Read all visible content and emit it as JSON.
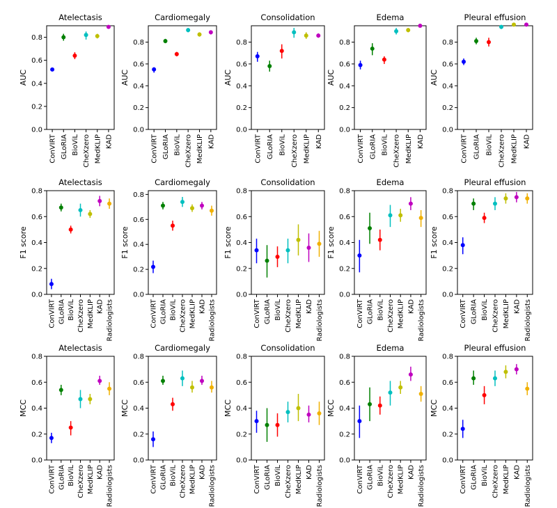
{
  "chart_data": [
    {
      "type": "scatter",
      "title": "Atelectasis",
      "ylabel": "AUC",
      "ylim": [
        0,
        0.9
      ],
      "yticks": [
        0.0,
        0.2,
        0.4,
        0.6,
        0.8
      ],
      "categories": [
        "ConVIRT",
        "GLoRIA",
        "BioViL",
        "CheXzero",
        "MedKLIP",
        "KAD"
      ],
      "values": [
        0.52,
        0.8,
        0.64,
        0.82,
        0.81,
        0.89
      ],
      "lower": [
        0.51,
        0.77,
        0.61,
        0.78,
        0.79,
        0.88
      ],
      "upper": [
        0.53,
        0.83,
        0.67,
        0.85,
        0.83,
        0.9
      ]
    },
    {
      "type": "scatter",
      "title": "Cardiomegaly",
      "ylabel": "AUC",
      "ylim": [
        0,
        0.95
      ],
      "yticks": [
        0.0,
        0.2,
        0.4,
        0.6,
        0.8
      ],
      "categories": [
        "ConVIRT",
        "GLoRIA",
        "BioViL",
        "CheXzero",
        "MedKLIP",
        "KAD"
      ],
      "values": [
        0.55,
        0.81,
        0.69,
        0.91,
        0.87,
        0.89
      ],
      "lower": [
        0.52,
        0.79,
        0.67,
        0.89,
        0.85,
        0.87
      ],
      "upper": [
        0.57,
        0.83,
        0.71,
        0.93,
        0.89,
        0.9
      ]
    },
    {
      "type": "scatter",
      "title": "Consolidation",
      "ylabel": "AUC",
      "ylim": [
        0,
        0.95
      ],
      "yticks": [
        0.0,
        0.2,
        0.4,
        0.6,
        0.8
      ],
      "categories": [
        "ConVIRT",
        "GLoRIA",
        "BioViL",
        "CheXzero",
        "MedKLIP",
        "KAD"
      ],
      "values": [
        0.67,
        0.58,
        0.72,
        0.89,
        0.86,
        0.86
      ],
      "lower": [
        0.62,
        0.53,
        0.65,
        0.84,
        0.83,
        0.84
      ],
      "upper": [
        0.71,
        0.63,
        0.78,
        0.93,
        0.89,
        0.88
      ]
    },
    {
      "type": "scatter",
      "title": "Edema",
      "ylabel": "AUC",
      "ylim": [
        0,
        0.95
      ],
      "yticks": [
        0.0,
        0.2,
        0.4,
        0.6,
        0.8
      ],
      "categories": [
        "ConVIRT",
        "GLoRIA",
        "BioViL",
        "CheXzero",
        "MedKLIP",
        "KAD"
      ],
      "values": [
        0.59,
        0.74,
        0.64,
        0.9,
        0.91,
        0.95
      ],
      "lower": [
        0.55,
        0.68,
        0.6,
        0.87,
        0.89,
        0.94
      ],
      "upper": [
        0.63,
        0.79,
        0.67,
        0.93,
        0.93,
        0.96
      ]
    },
    {
      "type": "scatter",
      "title": "Pleural effusion",
      "ylabel": "AUC",
      "ylim": [
        0,
        0.95
      ],
      "yticks": [
        0.0,
        0.2,
        0.4,
        0.6,
        0.8
      ],
      "categories": [
        "ConVIRT",
        "GLoRIA",
        "BioViL",
        "CheXzero",
        "MedKLIP",
        "KAD"
      ],
      "values": [
        0.62,
        0.81,
        0.8,
        0.94,
        0.96,
        0.96
      ],
      "lower": [
        0.59,
        0.78,
        0.76,
        0.92,
        0.95,
        0.95
      ],
      "upper": [
        0.65,
        0.84,
        0.84,
        0.95,
        0.97,
        0.97
      ]
    },
    {
      "type": "scatter",
      "title": "Atelectasis",
      "ylabel": "F1 score",
      "ylim": [
        0,
        0.8
      ],
      "yticks": [
        0.0,
        0.2,
        0.4,
        0.6,
        0.8
      ],
      "categories": [
        "ConVIRT",
        "GLoRIA",
        "BioViL",
        "CheXzero",
        "MedKLIP",
        "KAD",
        "Radiologists"
      ],
      "values": [
        0.08,
        0.67,
        0.5,
        0.65,
        0.62,
        0.72,
        0.7
      ],
      "lower": [
        0.04,
        0.64,
        0.47,
        0.6,
        0.59,
        0.68,
        0.66
      ],
      "upper": [
        0.12,
        0.7,
        0.53,
        0.7,
        0.65,
        0.76,
        0.74
      ]
    },
    {
      "type": "scatter",
      "title": "Cardiomegaly",
      "ylabel": "F1 score",
      "ylim": [
        0,
        0.83
      ],
      "yticks": [
        0.0,
        0.2,
        0.4,
        0.6,
        0.8
      ],
      "categories": [
        "ConVIRT",
        "GLoRIA",
        "BioViL",
        "CheXzero",
        "MedKLIP",
        "KAD",
        "Radiologists"
      ],
      "values": [
        0.22,
        0.71,
        0.55,
        0.74,
        0.69,
        0.71,
        0.67
      ],
      "lower": [
        0.17,
        0.68,
        0.51,
        0.7,
        0.66,
        0.68,
        0.63
      ],
      "upper": [
        0.27,
        0.74,
        0.59,
        0.78,
        0.72,
        0.74,
        0.71
      ]
    },
    {
      "type": "scatter",
      "title": "Consolidation",
      "ylabel": "F1 score",
      "ylim": [
        0,
        0.8
      ],
      "yticks": [
        0.0,
        0.2,
        0.4,
        0.6,
        0.8
      ],
      "categories": [
        "ConVIRT",
        "GLoRIA",
        "BioViL",
        "CheXzero",
        "MedKLIP",
        "KAD",
        "Radiologists"
      ],
      "values": [
        0.34,
        0.26,
        0.29,
        0.34,
        0.42,
        0.36,
        0.39
      ],
      "lower": [
        0.24,
        0.13,
        0.21,
        0.24,
        0.3,
        0.25,
        0.29
      ],
      "upper": [
        0.43,
        0.38,
        0.37,
        0.43,
        0.54,
        0.47,
        0.49
      ]
    },
    {
      "type": "scatter",
      "title": "Edema",
      "ylabel": "F1 score",
      "ylim": [
        0,
        0.8
      ],
      "yticks": [
        0.0,
        0.2,
        0.4,
        0.6,
        0.8
      ],
      "categories": [
        "ConVIRT",
        "GLoRIA",
        "BioViL",
        "CheXzero",
        "MedKLIP",
        "KAD",
        "Radiologists"
      ],
      "values": [
        0.3,
        0.51,
        0.42,
        0.61,
        0.61,
        0.7,
        0.59
      ],
      "lower": [
        0.17,
        0.39,
        0.34,
        0.52,
        0.56,
        0.65,
        0.52
      ],
      "upper": [
        0.42,
        0.63,
        0.5,
        0.69,
        0.66,
        0.75,
        0.65
      ]
    },
    {
      "type": "scatter",
      "title": "Pleural effusion",
      "ylabel": "F1 score",
      "ylim": [
        0,
        0.8
      ],
      "yticks": [
        0.0,
        0.2,
        0.4,
        0.6,
        0.8
      ],
      "categories": [
        "ConVIRT",
        "GLoRIA",
        "BioViL",
        "CheXzero",
        "MedKLIP",
        "KAD",
        "Radiologists"
      ],
      "values": [
        0.38,
        0.7,
        0.59,
        0.7,
        0.74,
        0.75,
        0.74
      ],
      "lower": [
        0.31,
        0.65,
        0.55,
        0.65,
        0.7,
        0.71,
        0.7
      ],
      "upper": [
        0.44,
        0.74,
        0.63,
        0.75,
        0.78,
        0.79,
        0.78
      ]
    },
    {
      "type": "scatter",
      "title": "Atelectasis",
      "ylabel": "MCC",
      "ylim": [
        0,
        0.8
      ],
      "yticks": [
        0.0,
        0.2,
        0.4,
        0.6,
        0.8
      ],
      "categories": [
        "ConVIRT",
        "GLoRIA",
        "BioViL",
        "CheXzero",
        "MedKLIP",
        "KAD",
        "Radiologists"
      ],
      "values": [
        0.17,
        0.54,
        0.25,
        0.47,
        0.47,
        0.61,
        0.55
      ],
      "lower": [
        0.13,
        0.5,
        0.19,
        0.4,
        0.43,
        0.58,
        0.5
      ],
      "upper": [
        0.21,
        0.58,
        0.3,
        0.54,
        0.51,
        0.65,
        0.6
      ]
    },
    {
      "type": "scatter",
      "title": "Cardiomegaly",
      "ylabel": "MCC",
      "ylim": [
        0,
        0.8
      ],
      "yticks": [
        0.0,
        0.2,
        0.4,
        0.6,
        0.8
      ],
      "categories": [
        "ConVIRT",
        "GLoRIA",
        "BioViL",
        "CheXzero",
        "MedKLIP",
        "KAD",
        "Radiologists"
      ],
      "values": [
        0.16,
        0.61,
        0.43,
        0.63,
        0.56,
        0.61,
        0.56
      ],
      "lower": [
        0.1,
        0.58,
        0.38,
        0.57,
        0.52,
        0.58,
        0.52
      ],
      "upper": [
        0.22,
        0.65,
        0.48,
        0.69,
        0.61,
        0.65,
        0.61
      ]
    },
    {
      "type": "scatter",
      "title": "Consolidation",
      "ylabel": "MCC",
      "ylim": [
        0,
        0.8
      ],
      "yticks": [
        0.0,
        0.2,
        0.4,
        0.6,
        0.8
      ],
      "categories": [
        "ConVIRT",
        "GLoRIA",
        "BioViL",
        "CheXzero",
        "MedKLIP",
        "KAD",
        "Radiologists"
      ],
      "values": [
        0.3,
        0.27,
        0.27,
        0.37,
        0.4,
        0.35,
        0.36
      ],
      "lower": [
        0.21,
        0.14,
        0.18,
        0.29,
        0.3,
        0.29,
        0.27
      ],
      "upper": [
        0.38,
        0.4,
        0.36,
        0.45,
        0.51,
        0.42,
        0.45
      ]
    },
    {
      "type": "scatter",
      "title": "Edema",
      "ylabel": "MCC",
      "ylim": [
        0,
        0.8
      ],
      "yticks": [
        0.0,
        0.2,
        0.4,
        0.6,
        0.8
      ],
      "categories": [
        "ConVIRT",
        "GLoRIA",
        "BioViL",
        "CheXzero",
        "MedKLIP",
        "KAD",
        "Radiologists"
      ],
      "values": [
        0.3,
        0.43,
        0.42,
        0.52,
        0.56,
        0.66,
        0.51
      ],
      "lower": [
        0.17,
        0.3,
        0.35,
        0.42,
        0.51,
        0.61,
        0.45
      ],
      "upper": [
        0.42,
        0.56,
        0.49,
        0.61,
        0.61,
        0.72,
        0.57
      ]
    },
    {
      "type": "scatter",
      "title": "Pleural effusion",
      "ylabel": "MCC",
      "ylim": [
        0,
        0.8
      ],
      "yticks": [
        0.0,
        0.2,
        0.4,
        0.6,
        0.8
      ],
      "categories": [
        "ConVIRT",
        "GLoRIA",
        "BioViL",
        "CheXzero",
        "MedKLIP",
        "KAD",
        "Radiologists"
      ],
      "values": [
        0.24,
        0.63,
        0.5,
        0.63,
        0.68,
        0.7,
        0.55
      ],
      "lower": [
        0.17,
        0.58,
        0.43,
        0.57,
        0.63,
        0.66,
        0.5
      ],
      "upper": [
        0.31,
        0.69,
        0.57,
        0.69,
        0.73,
        0.74,
        0.6
      ]
    }
  ],
  "category_colors": {
    "ConVIRT": "#0000ff",
    "GLoRIA": "#008000",
    "BioViL": "#ff0000",
    "CheXzero": "#00bfbf",
    "MedKLIP": "#bfbf00",
    "KAD": "#bf00bf",
    "Radiologists": "#f0b000"
  }
}
